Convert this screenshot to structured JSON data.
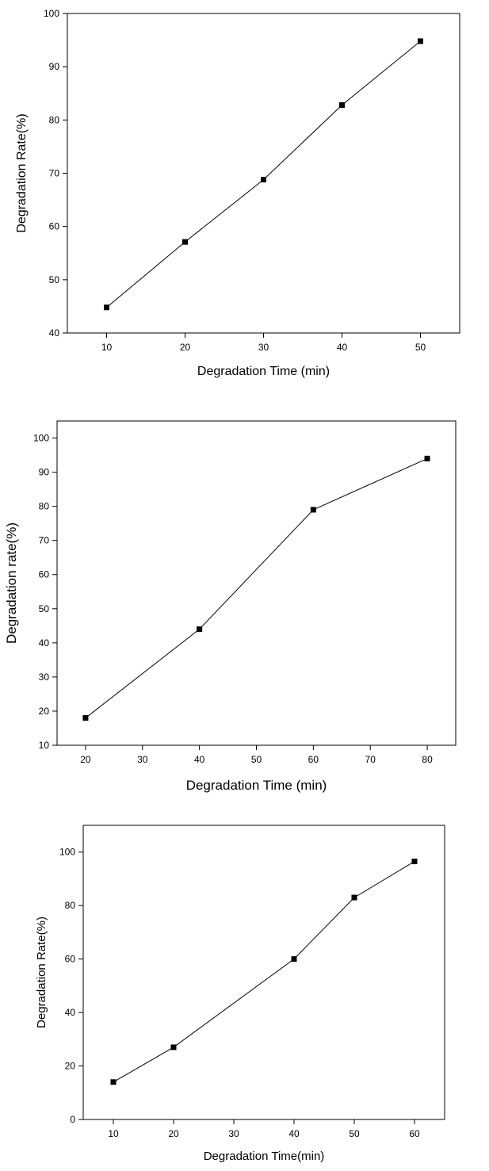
{
  "chart_data": [
    {
      "type": "line",
      "x": [
        10,
        20,
        30,
        40,
        50
      ],
      "series": [
        {
          "values": [
            44.8,
            57.1,
            68.8,
            82.8,
            94.8
          ]
        }
      ],
      "xlabel": "Degradation Time (min)",
      "ylabel": "Degradation Rate(%)",
      "xlim": [
        5,
        55
      ],
      "ylim": [
        40,
        100
      ],
      "xticks": [
        10,
        20,
        30,
        40,
        50
      ],
      "yticks": [
        40,
        50,
        60,
        70,
        80,
        90,
        100
      ],
      "grid": false
    },
    {
      "type": "line",
      "x": [
        20,
        40,
        60,
        80
      ],
      "series": [
        {
          "values": [
            18,
            44,
            79,
            94
          ]
        }
      ],
      "xlabel": "Degradation Time (min)",
      "ylabel": "Degradation rate(%)",
      "xlim": [
        15,
        85
      ],
      "ylim": [
        10,
        105
      ],
      "xticks": [
        20,
        30,
        40,
        50,
        60,
        70,
        80
      ],
      "yticks": [
        10,
        20,
        30,
        40,
        50,
        60,
        70,
        80,
        90,
        100
      ],
      "grid": false
    },
    {
      "type": "line",
      "x": [
        10,
        20,
        40,
        50,
        60
      ],
      "series": [
        {
          "values": [
            14,
            27,
            60,
            83,
            96.5
          ]
        }
      ],
      "xlabel": "Degradation Time(min)",
      "ylabel": "Degradation Rate(%)",
      "xlim": [
        5,
        65
      ],
      "ylim": [
        0,
        110
      ],
      "xticks": [
        10,
        20,
        30,
        40,
        50,
        60
      ],
      "yticks": [
        0,
        20,
        40,
        60,
        80,
        100
      ],
      "grid": false
    }
  ]
}
